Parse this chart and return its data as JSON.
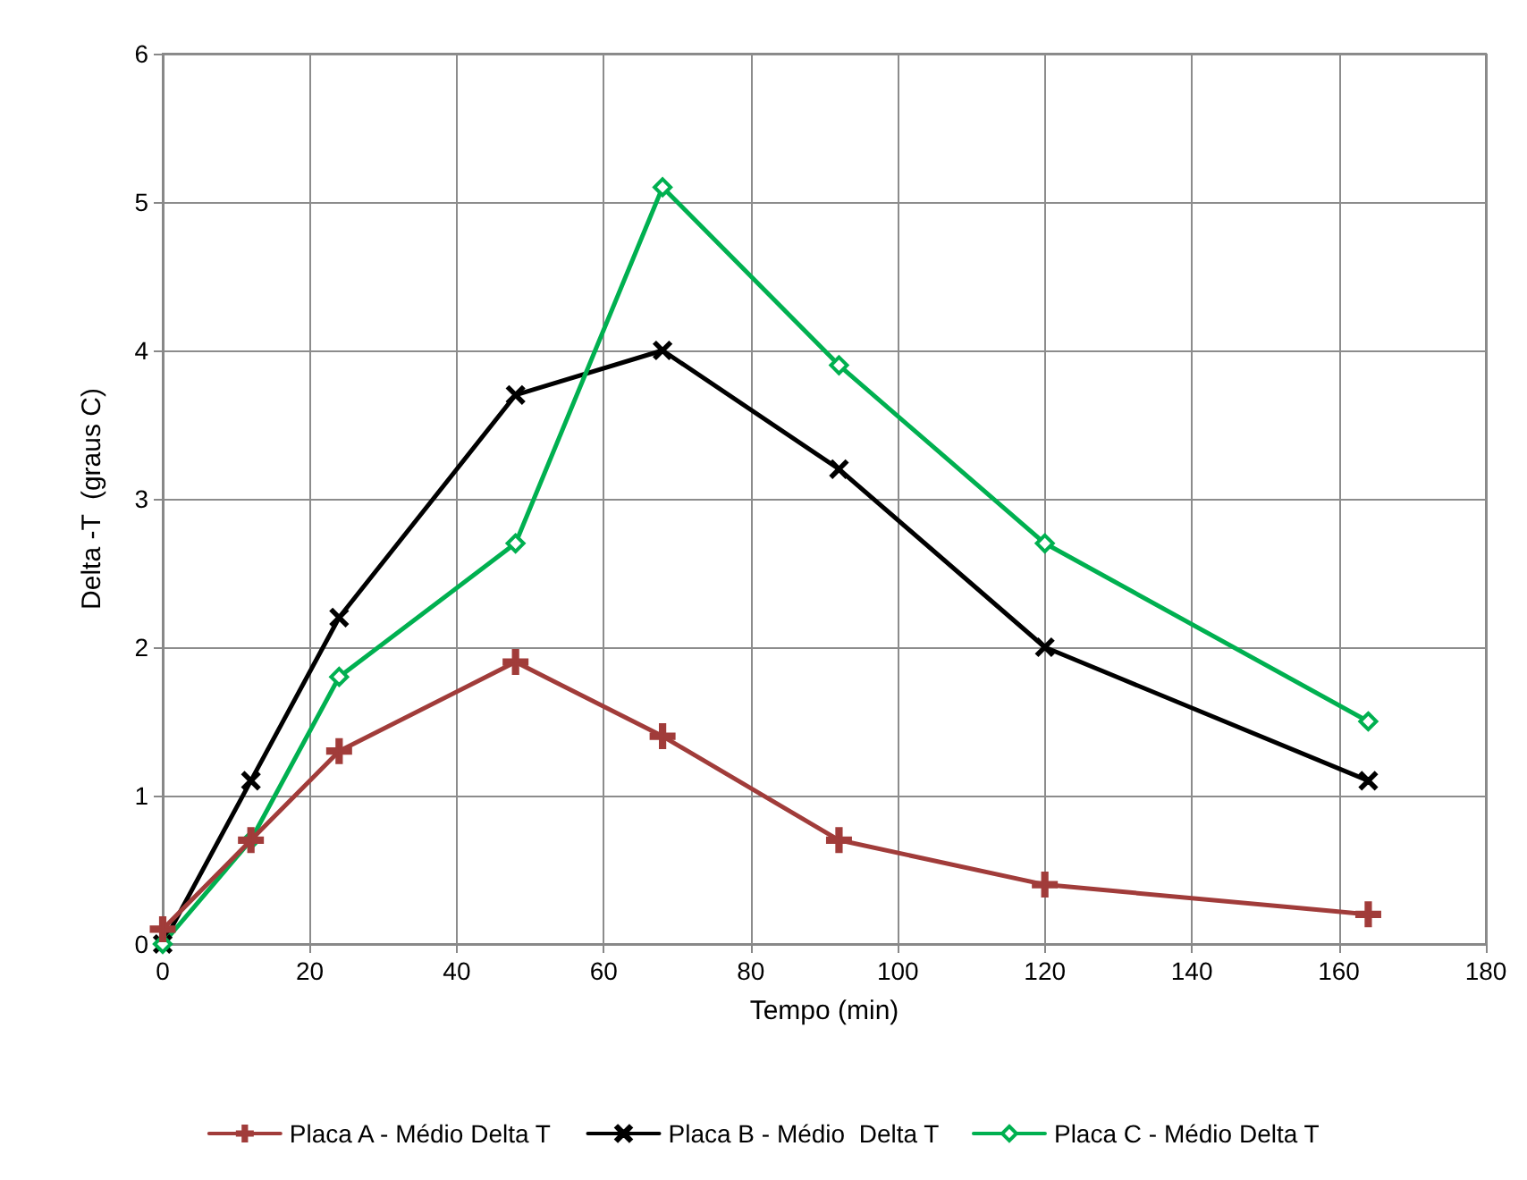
{
  "chart_data": {
    "type": "line",
    "xlabel": "Tempo (min)",
    "ylabel": "Delta -T  (graus C)",
    "x": [
      0,
      12,
      24,
      48,
      68,
      92,
      120,
      164
    ],
    "series": [
      {
        "name": "Placa A - Médio Delta T",
        "color": "#a13c3a",
        "marker": "cross",
        "values": [
          0.1,
          0.7,
          1.3,
          1.9,
          1.4,
          0.7,
          0.4,
          0.2
        ]
      },
      {
        "name": "Placa B - Médio  Delta T",
        "color": "#000000",
        "marker": "x",
        "values": [
          0,
          1.1,
          2.2,
          3.7,
          4.0,
          3.2,
          2.0,
          1.1
        ]
      },
      {
        "name": "Placa C - Médio Delta T",
        "color": "#00b050",
        "marker": "diamond",
        "values": [
          0,
          0.7,
          1.8,
          2.7,
          5.1,
          3.9,
          2.7,
          1.5
        ]
      }
    ],
    "xlim": [
      0,
      180
    ],
    "xticks": [
      0,
      20,
      40,
      60,
      80,
      100,
      120,
      140,
      160,
      180
    ],
    "ylim": [
      0,
      6
    ],
    "yticks": [
      0,
      1,
      2,
      3,
      4,
      5,
      6
    ],
    "grid": true,
    "legend": "bottom",
    "line_style": "solid"
  }
}
